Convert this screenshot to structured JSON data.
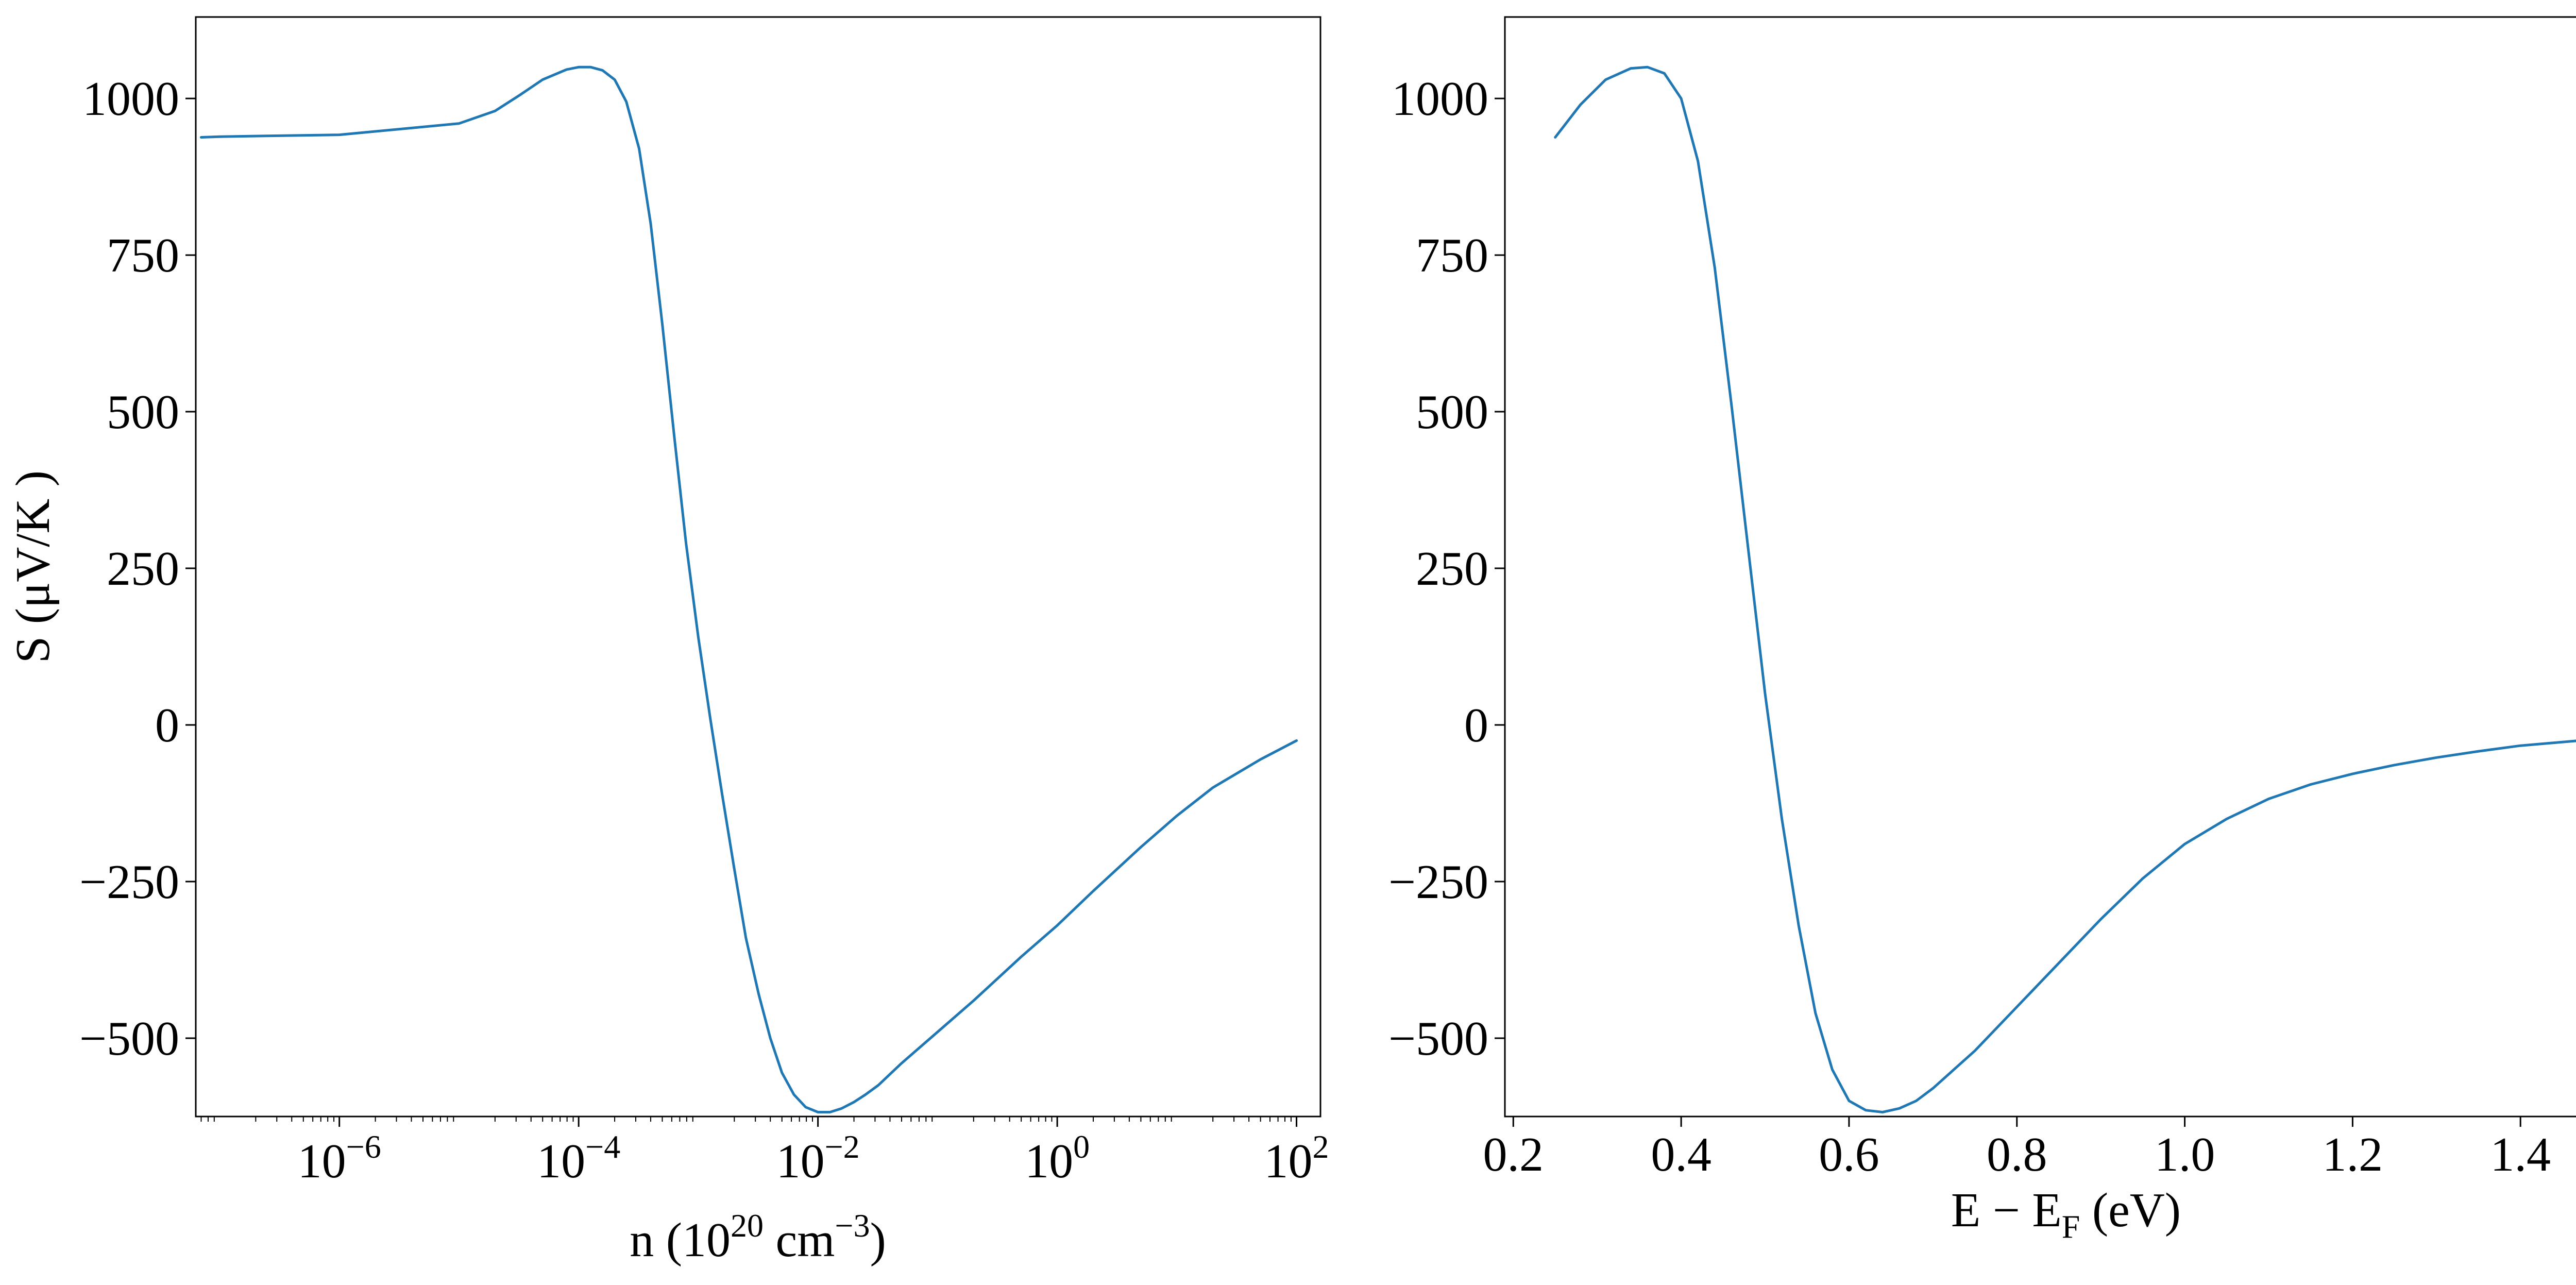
{
  "figure": {
    "background": "#ffffff",
    "line_color": "#1f77b4"
  },
  "chart_data": [
    {
      "type": "line",
      "x_scale": "log",
      "ylabel": "S (μV/K )",
      "xlabel": {
        "base": "n (10",
        "exp": "20",
        "unit": "cm",
        "unit_exp": "−3",
        "close": ")"
      },
      "xlim_log10": [
        -7.2,
        2.2
      ],
      "ylim": [
        -625,
        1130
      ],
      "xticks": [
        {
          "value": 1e-06,
          "base": "10",
          "exp": "−6"
        },
        {
          "value": 0.0001,
          "base": "10",
          "exp": "−4"
        },
        {
          "value": 0.01,
          "base": "10",
          "exp": "−2"
        },
        {
          "value": 1,
          "base": "10",
          "exp": "0"
        },
        {
          "value": 100,
          "base": "10",
          "exp": "2"
        }
      ],
      "yticks": [
        {
          "value": 1000,
          "label": "1000"
        },
        {
          "value": 750,
          "label": "750"
        },
        {
          "value": 500,
          "label": "500"
        },
        {
          "value": 250,
          "label": "250"
        },
        {
          "value": 0,
          "label": "0"
        },
        {
          "value": -250,
          "label": "−250"
        },
        {
          "value": -500,
          "label": "−500"
        }
      ],
      "series": [
        {
          "x": [
            7e-08,
            1e-07,
            1e-06,
            1e-05,
            2e-05,
            3.2e-05,
            5e-05,
            7.9e-05,
            0.0001,
            0.000126,
            0.000158,
            0.0002,
            0.00025,
            0.00032,
            0.0004,
            0.0005,
            0.00063,
            0.00079,
            0.001,
            0.00126,
            0.00158,
            0.002,
            0.0025,
            0.0032,
            0.004,
            0.005,
            0.0063,
            0.0079,
            0.01,
            0.0126,
            0.0158,
            0.02,
            0.025,
            0.032,
            0.05,
            0.1,
            0.2,
            0.5,
            1,
            2,
            5,
            10,
            20,
            50,
            100
          ],
          "y": [
            938,
            939,
            942,
            960,
            980,
            1005,
            1030,
            1046,
            1050,
            1050,
            1045,
            1030,
            995,
            920,
            800,
            640,
            460,
            290,
            140,
            10,
            -110,
            -230,
            -340,
            -430,
            -500,
            -555,
            -590,
            -610,
            -618,
            -618,
            -612,
            -602,
            -590,
            -575,
            -540,
            -490,
            -440,
            -370,
            -320,
            -265,
            -195,
            -145,
            -100,
            -55,
            -25
          ]
        }
      ]
    },
    {
      "type": "line",
      "x_scale": "linear",
      "ylabel": "",
      "xlabel": {
        "base": "E − E",
        "sub": "F",
        "unit": "(eV)"
      },
      "xlim": [
        0.19,
        1.53
      ],
      "ylim": [
        -625,
        1130
      ],
      "xticks": [
        {
          "value": 0.2,
          "label": "0.2"
        },
        {
          "value": 0.4,
          "label": "0.4"
        },
        {
          "value": 0.6,
          "label": "0.6"
        },
        {
          "value": 0.8,
          "label": "0.8"
        },
        {
          "value": 1.0,
          "label": "1.0"
        },
        {
          "value": 1.2,
          "label": "1.2"
        },
        {
          "value": 1.4,
          "label": "1.4"
        }
      ],
      "yticks": [
        {
          "value": 1000,
          "label": "1000"
        },
        {
          "value": 750,
          "label": "750"
        },
        {
          "value": 500,
          "label": "500"
        },
        {
          "value": 250,
          "label": "250"
        },
        {
          "value": 0,
          "label": "0"
        },
        {
          "value": -250,
          "label": "−250"
        },
        {
          "value": -500,
          "label": "−500"
        }
      ],
      "series": [
        {
          "x": [
            0.25,
            0.28,
            0.31,
            0.34,
            0.36,
            0.38,
            0.4,
            0.42,
            0.44,
            0.46,
            0.48,
            0.5,
            0.52,
            0.54,
            0.56,
            0.58,
            0.6,
            0.62,
            0.64,
            0.66,
            0.68,
            0.7,
            0.75,
            0.8,
            0.85,
            0.9,
            0.95,
            1.0,
            1.05,
            1.1,
            1.15,
            1.2,
            1.25,
            1.3,
            1.35,
            1.4,
            1.47
          ],
          "y": [
            938,
            990,
            1030,
            1048,
            1050,
            1040,
            1000,
            900,
            730,
            510,
            280,
            50,
            -150,
            -320,
            -460,
            -550,
            -600,
            -615,
            -618,
            -612,
            -600,
            -580,
            -520,
            -450,
            -380,
            -310,
            -245,
            -190,
            -150,
            -118,
            -95,
            -78,
            -64,
            -52,
            -42,
            -33,
            -25
          ]
        }
      ]
    }
  ]
}
